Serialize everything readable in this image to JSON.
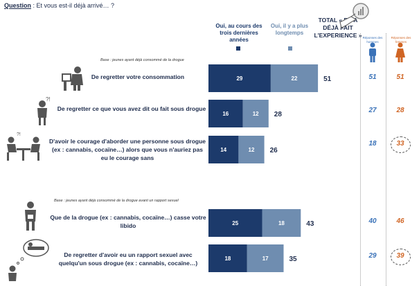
{
  "question": {
    "label": "Question",
    "text": " : Et vous est-il déjà arrivé… ?"
  },
  "legend": {
    "recent": "Oui, au cours des trois dernières années",
    "older": "Oui, il y a plus longtemps",
    "total": "TOTAL « EN A DÉJÀ FAIT L'EXPERIENCE »",
    "men": "Réponses des hommes",
    "women": "Réponses des femmes"
  },
  "colors": {
    "recent": "#1c3a6b",
    "older": "#6f8db0",
    "men": "#3a72b8",
    "women": "#d06524"
  },
  "bases": {
    "b1": "Base : jeunes ayant déjà consommé de la drogue",
    "b2": "Base : jeunes ayant déjà consommé de la drogue avant un rapport sexuel"
  },
  "chart_data": {
    "type": "bar",
    "orientation": "horizontal",
    "stacked": true,
    "categories": [
      "De regretter votre consommation",
      "De regretter ce que vous avez dit ou fait sous drogue",
      "D'avoir le courage d'aborder une personne sous drogue (ex : cannabis, cocaïne…) alors que vous n'auriez pas eu le courage sans",
      "Que de la drogue (ex : cannabis, cocaïne…) casse votre libido",
      "De regretter d'avoir eu un rapport sexuel avec quelqu'un sous drogue (ex : cannabis, cocaïne…)"
    ],
    "series": [
      {
        "name": "Oui, au cours des trois dernières années",
        "values": [
          29,
          16,
          14,
          25,
          18
        ]
      },
      {
        "name": "Oui, il y a plus longtemps",
        "values": [
          22,
          12,
          12,
          18,
          17
        ]
      }
    ],
    "totals": [
      51,
      28,
      26,
      43,
      35
    ],
    "men": [
      51,
      27,
      18,
      40,
      29
    ],
    "women": [
      51,
      28,
      33,
      46,
      39
    ],
    "women_highlighted": [
      false,
      false,
      true,
      false,
      true
    ]
  }
}
